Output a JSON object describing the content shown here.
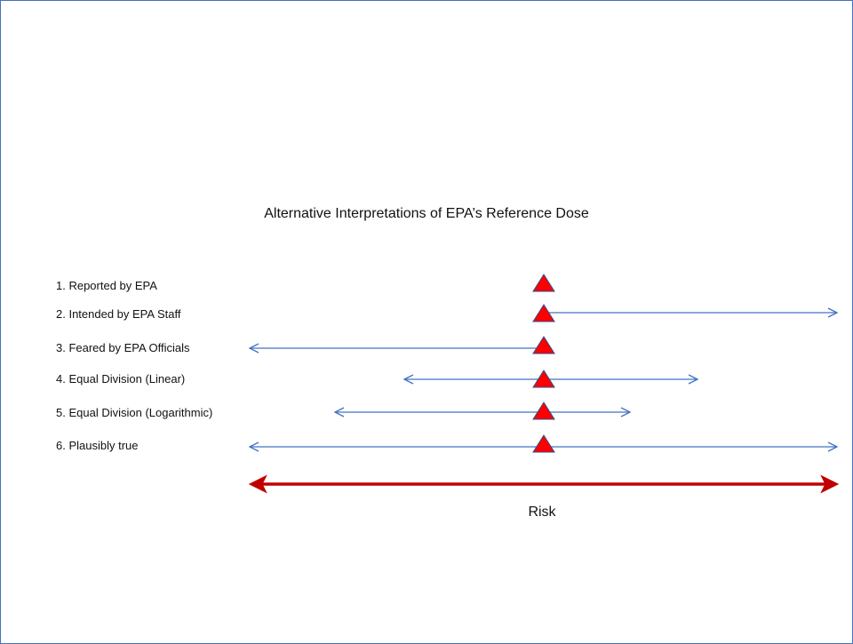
{
  "title": "Alternative Interpretations of EPA’s Reference Dose",
  "rows": [
    {
      "label": "1. Reported by EPA",
      "left_extent": null,
      "right_extent": null
    },
    {
      "label": "2. Intended by EPA Staff",
      "left_extent": null,
      "right_extent": "max"
    },
    {
      "label": "3. Feared by EPA Officials",
      "left_extent": "min",
      "right_extent": null
    },
    {
      "label": "4. Equal Division (Linear)",
      "left_extent": "mid-left",
      "right_extent": "mid-right"
    },
    {
      "label": "5. Equal Division (Logarithmic)",
      "left_extent": "log-left",
      "right_extent": "log-right"
    },
    {
      "label": "6. Plausibly true",
      "left_extent": "min",
      "right_extent": "max"
    }
  ],
  "axis": {
    "label": "Risk"
  },
  "colors": {
    "frame": "#4472c4",
    "interval": "#4472c4",
    "marker_fill": "#ff0000",
    "marker_stroke": "#2f4f8f",
    "axis": "#c00000"
  },
  "marker_icon": "triangle-marker-icon"
}
